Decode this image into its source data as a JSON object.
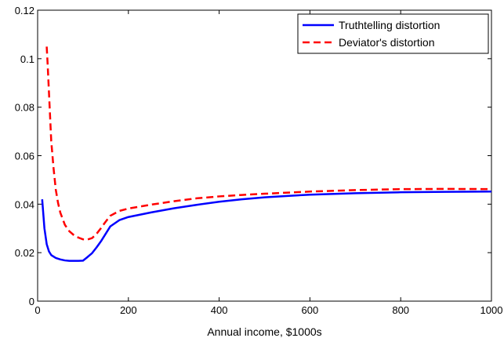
{
  "chart_data": {
    "type": "line",
    "title": "",
    "xlabel": "Annual income, $1000s",
    "ylabel": "",
    "xlim": [
      0,
      1000
    ],
    "ylim": [
      0,
      0.12
    ],
    "x_ticks": [
      0,
      200,
      400,
      600,
      800,
      1000
    ],
    "x_tick_labels": [
      "0",
      "200",
      "400",
      "600",
      "800",
      "1000"
    ],
    "y_ticks": [
      0,
      0.02,
      0.04,
      0.06,
      0.08,
      0.1,
      0.12
    ],
    "y_tick_labels": [
      "0",
      "0.02",
      "0.04",
      "0.06",
      "0.08",
      "0.1",
      "0.12"
    ],
    "grid": false,
    "legend_position": "top-right",
    "series": [
      {
        "name": "Truthtelling distortion",
        "color": "#0000ff",
        "style": "solid",
        "x": [
          10,
          15,
          20,
          25,
          30,
          40,
          50,
          60,
          70,
          80,
          90,
          100,
          110,
          120,
          130,
          140,
          150,
          160,
          180,
          200,
          250,
          300,
          350,
          400,
          450,
          500,
          550,
          600,
          700,
          800,
          900,
          1000
        ],
        "y": [
          0.042,
          0.03,
          0.0235,
          0.0205,
          0.019,
          0.0178,
          0.0172,
          0.0168,
          0.0166,
          0.0166,
          0.0166,
          0.0167,
          0.0182,
          0.0198,
          0.0222,
          0.0248,
          0.0278,
          0.0308,
          0.0334,
          0.0347,
          0.0366,
          0.0383,
          0.0397,
          0.041,
          0.042,
          0.0428,
          0.0434,
          0.0439,
          0.0445,
          0.0449,
          0.0451,
          0.0452
        ]
      },
      {
        "name": "Deviator's distortion",
        "color": "#ff0000",
        "style": "dashed",
        "x": [
          20,
          22,
          25,
          28,
          30,
          35,
          40,
          45,
          50,
          60,
          70,
          80,
          90,
          100,
          110,
          120,
          130,
          140,
          150,
          160,
          180,
          200,
          250,
          300,
          350,
          400,
          450,
          500,
          600,
          700,
          800,
          900,
          1000
        ],
        "y": [
          0.105,
          0.098,
          0.086,
          0.074,
          0.066,
          0.055,
          0.046,
          0.0405,
          0.0365,
          0.0315,
          0.0288,
          0.0272,
          0.0262,
          0.0255,
          0.0254,
          0.026,
          0.0278,
          0.0302,
          0.0328,
          0.0352,
          0.0372,
          0.0382,
          0.0398,
          0.0412,
          0.0424,
          0.0432,
          0.0438,
          0.0443,
          0.0452,
          0.0458,
          0.0462,
          0.0463,
          0.0462
        ]
      }
    ]
  }
}
